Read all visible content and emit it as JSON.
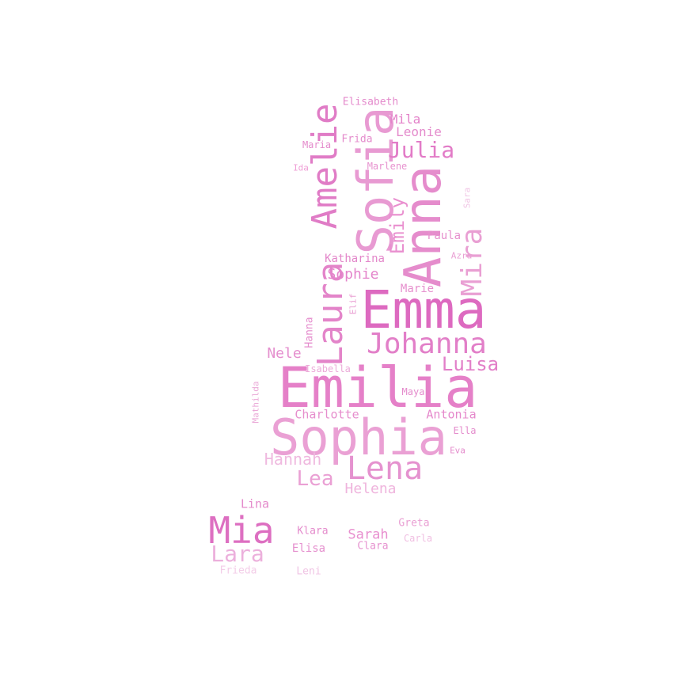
{
  "cloud": {
    "words": [
      {
        "text": "Emilia",
        "color": "#e580c8"
      },
      {
        "text": "Sophia",
        "color": "#eaa0d4"
      },
      {
        "text": "Emma",
        "color": "#dd6ac0"
      },
      {
        "text": "Anna",
        "color": "#e58ccc"
      },
      {
        "text": "Sofia",
        "color": "#e89ad2"
      },
      {
        "text": "Amelie",
        "color": "#e07cc6"
      },
      {
        "text": "Laura",
        "color": "#e384c9"
      },
      {
        "text": "Johanna",
        "color": "#e27fc8"
      },
      {
        "text": "Lena",
        "color": "#e592cf"
      },
      {
        "text": "Mia",
        "color": "#dd6fc1"
      },
      {
        "text": "Lara",
        "color": "#ecb0dc"
      },
      {
        "text": "Mira",
        "color": "#e99fd3"
      },
      {
        "text": "Julia",
        "color": "#e27bc7"
      },
      {
        "text": "Emily",
        "color": "#e98fcf"
      },
      {
        "text": "Luisa",
        "color": "#e27fc8"
      },
      {
        "text": "Lea",
        "color": "#eaa0d4"
      },
      {
        "text": "Hannah",
        "color": "#efb9df"
      },
      {
        "text": "Sophie",
        "color": "#e485cb"
      },
      {
        "text": "Helena",
        "color": "#efb4dd"
      },
      {
        "text": "Nele",
        "color": "#e58fce"
      },
      {
        "text": "Sarah",
        "color": "#e88fcf"
      },
      {
        "text": "Mila",
        "color": "#e382c9"
      },
      {
        "text": "Leonie",
        "color": "#e48bcc"
      },
      {
        "text": "Charlotte",
        "color": "#e68ecd"
      },
      {
        "text": "Antonia",
        "color": "#e588cb"
      },
      {
        "text": "Paula",
        "color": "#e68fcd"
      },
      {
        "text": "Katharina",
        "color": "#e387ca"
      },
      {
        "text": "Marie",
        "color": "#e68fcd"
      },
      {
        "text": "Lina",
        "color": "#e48acb"
      },
      {
        "text": "Elisa",
        "color": "#e590ce"
      },
      {
        "text": "Klara",
        "color": "#e48bcc"
      },
      {
        "text": "Clara",
        "color": "#e692cf"
      },
      {
        "text": "Greta",
        "color": "#e99fd3"
      },
      {
        "text": "Carla",
        "color": "#f0bfe2"
      },
      {
        "text": "Frieda",
        "color": "#f3cde8"
      },
      {
        "text": "Leni",
        "color": "#f0c4e4"
      },
      {
        "text": "Elisabeth",
        "color": "#e48bcc"
      },
      {
        "text": "Frida",
        "color": "#e48bcc"
      },
      {
        "text": "Maria",
        "color": "#e48bcc"
      },
      {
        "text": "Marlene",
        "color": "#e792cf"
      },
      {
        "text": "Ida",
        "color": "#ef9fd6"
      },
      {
        "text": "Sara",
        "color": "#f0c4e4"
      },
      {
        "text": "Azra",
        "color": "#e99fd3"
      },
      {
        "text": "Elif",
        "color": "#e99fd3"
      },
      {
        "text": "Hanna",
        "color": "#e48bcc"
      },
      {
        "text": "Isabella",
        "color": "#ebaad8"
      },
      {
        "text": "Maya",
        "color": "#e48bcc"
      },
      {
        "text": "Mathilda",
        "color": "#eaa8d7"
      },
      {
        "text": "Ella",
        "color": "#e48bcc"
      },
      {
        "text": "Eva",
        "color": "#e48bcc"
      }
    ]
  }
}
